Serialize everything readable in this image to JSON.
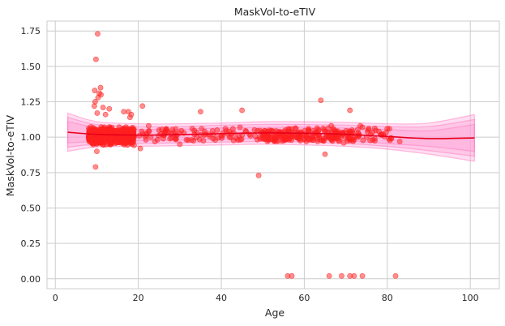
{
  "chart_data": {
    "type": "scatter",
    "title": "MaskVol-to-eTIV",
    "xlabel": "Age",
    "ylabel": "MaskVol-to-eTIV",
    "xlim": [
      -2,
      107
    ],
    "ylim": [
      -0.07,
      1.82
    ],
    "xticks": [
      0,
      20,
      40,
      60,
      80,
      100
    ],
    "yticks": [
      0.0,
      0.25,
      0.5,
      0.75,
      1.0,
      1.25,
      1.5,
      1.75
    ],
    "xtick_labels": [
      "0",
      "20",
      "40",
      "60",
      "80",
      "100"
    ],
    "ytick_labels": [
      "0.00",
      "0.25",
      "0.50",
      "0.75",
      "1.00",
      "1.25",
      "1.50",
      "1.75"
    ],
    "grid": true,
    "colors": {
      "points": "#ff2020",
      "trend": "#e8001c",
      "band": "#ff9fd4",
      "band_edge": "#ff6fbf",
      "grid": "#cccccc",
      "spine": "#cccccc"
    },
    "series": [
      {
        "kind": "scatter",
        "points": [
          [
            10.2,
            1.73
          ],
          [
            9.8,
            1.55
          ],
          [
            9.5,
            1.33
          ],
          [
            10.6,
            1.31
          ],
          [
            10.9,
            1.35
          ],
          [
            11.0,
            1.3
          ],
          [
            9.6,
            1.25
          ],
          [
            9.4,
            1.22
          ],
          [
            10.3,
            1.28
          ],
          [
            11.5,
            1.21
          ],
          [
            10.1,
            1.17
          ],
          [
            12.1,
            1.16
          ],
          [
            9.7,
            0.79
          ],
          [
            10.0,
            0.9
          ],
          [
            13.0,
            1.2
          ],
          [
            16.5,
            1.18
          ],
          [
            17.6,
            1.18
          ],
          [
            18.3,
            1.16
          ],
          [
            21.0,
            1.22
          ],
          [
            18.0,
            1.14
          ],
          [
            35.0,
            1.18
          ],
          [
            45.0,
            1.19
          ],
          [
            64.0,
            1.26
          ],
          [
            71.0,
            1.19
          ],
          [
            49.0,
            0.73
          ],
          [
            65.0,
            0.88
          ],
          [
            20.5,
            0.92
          ],
          [
            24.0,
            0.97
          ],
          [
            30.0,
            0.95
          ],
          [
            8.4,
            0.98
          ],
          [
            56.0,
            0.02
          ],
          [
            57.0,
            0.02
          ],
          [
            66.0,
            0.02
          ],
          [
            69.0,
            0.02
          ],
          [
            71.0,
            0.02
          ],
          [
            72.0,
            0.02
          ],
          [
            74.0,
            0.02
          ],
          [
            82.0,
            0.02
          ],
          [
            22.0,
            1.03
          ],
          [
            23.0,
            1.0
          ],
          [
            25.0,
            1.05
          ],
          [
            26.0,
            0.99
          ],
          [
            27.0,
            1.04
          ],
          [
            28.0,
            1.02
          ],
          [
            29.0,
            1.01
          ],
          [
            31.0,
            1.03
          ],
          [
            32.0,
            0.98
          ],
          [
            33.0,
            1.06
          ],
          [
            34.0,
            1.0
          ],
          [
            36.0,
            1.04
          ],
          [
            37.0,
            1.02
          ],
          [
            38.0,
            0.99
          ],
          [
            39.0,
            1.05
          ],
          [
            40.0,
            1.01
          ],
          [
            41.0,
            1.06
          ],
          [
            42.0,
            1.0
          ],
          [
            43.0,
            1.03
          ],
          [
            44.0,
            0.98
          ],
          [
            46.0,
            1.04
          ],
          [
            47.0,
            1.01
          ],
          [
            48.0,
            1.05
          ],
          [
            50.0,
            0.99
          ],
          [
            51.0,
            1.03
          ],
          [
            52.0,
            1.02
          ],
          [
            53.0,
            1.0
          ],
          [
            54.0,
            1.04
          ],
          [
            55.0,
            0.98
          ],
          [
            57.0,
            1.03
          ],
          [
            58.0,
            1.06
          ],
          [
            59.0,
            0.99
          ],
          [
            60.0,
            1.02
          ],
          [
            61.0,
            1.05
          ],
          [
            62.0,
            1.0
          ],
          [
            63.0,
            1.03
          ],
          [
            64.0,
            0.98
          ],
          [
            65.0,
            1.04
          ],
          [
            66.0,
            1.01
          ],
          [
            67.0,
            1.06
          ],
          [
            68.0,
            0.99
          ],
          [
            69.0,
            1.03
          ],
          [
            70.0,
            1.0
          ],
          [
            71.5,
            1.05
          ],
          [
            72.0,
            0.98
          ],
          [
            73.0,
            1.03
          ],
          [
            74.0,
            1.07
          ],
          [
            75.0,
            1.0
          ],
          [
            76.0,
            1.02
          ],
          [
            77.0,
            0.99
          ],
          [
            78.0,
            1.04
          ],
          [
            79.0,
            1.02
          ],
          [
            80.0,
            1.06
          ],
          [
            81.0,
            0.99
          ],
          [
            83.0,
            0.97
          ],
          [
            22.5,
            1.08
          ],
          [
            33.5,
            1.02
          ],
          [
            44.5,
            1.07
          ],
          [
            55.5,
            1.05
          ],
          [
            60.5,
            0.97
          ],
          [
            66.5,
            1.08
          ],
          [
            69.5,
            0.96
          ],
          [
            73.5,
            1.08
          ]
        ]
      },
      {
        "kind": "trend",
        "x": [
          3,
          10,
          20,
          30,
          40,
          50,
          60,
          70,
          80,
          90,
          101
        ],
        "y": [
          1.035,
          1.02,
          1.015,
          1.018,
          1.025,
          1.03,
          1.028,
          1.02,
          1.005,
          0.99,
          0.995
        ]
      },
      {
        "kind": "band",
        "x": [
          3,
          10,
          20,
          30,
          40,
          50,
          60,
          70,
          80,
          90,
          101
        ],
        "bands": [
          {
            "lower": [
              0.9,
              0.93,
              0.935,
              0.94,
              0.945,
              0.95,
              0.945,
              0.935,
              0.915,
              0.88,
              0.83
            ],
            "upper": [
              1.17,
              1.11,
              1.095,
              1.095,
              1.1,
              1.11,
              1.11,
              1.105,
              1.095,
              1.1,
              1.16
            ]
          },
          {
            "lower": [
              0.93,
              0.95,
              0.955,
              0.96,
              0.965,
              0.97,
              0.965,
              0.955,
              0.935,
              0.905,
              0.865
            ],
            "upper": [
              1.14,
              1.09,
              1.075,
              1.075,
              1.085,
              1.09,
              1.09,
              1.085,
              1.075,
              1.075,
              1.125
            ]
          },
          {
            "lower": [
              0.96,
              0.97,
              0.975,
              0.98,
              0.985,
              0.99,
              0.985,
              0.975,
              0.955,
              0.935,
              0.9
            ],
            "upper": [
              1.11,
              1.07,
              1.055,
              1.056,
              1.065,
              1.07,
              1.07,
              1.065,
              1.055,
              1.045,
              1.09
            ]
          }
        ]
      }
    ]
  }
}
